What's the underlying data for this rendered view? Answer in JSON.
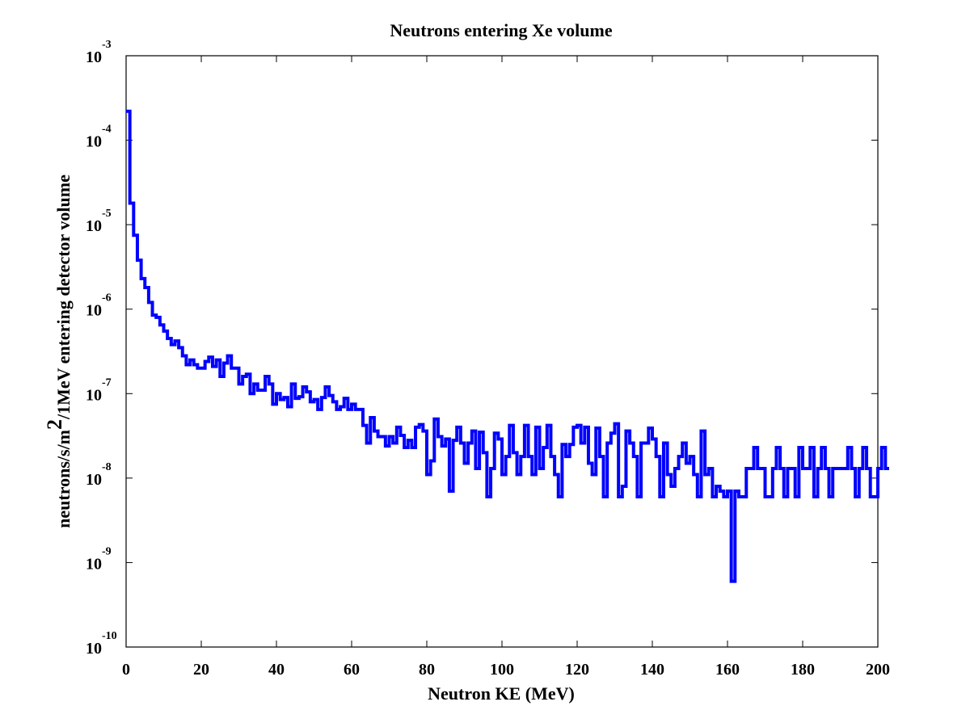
{
  "chart_data": {
    "type": "line",
    "title": "Neutrons entering Xe volume",
    "xlabel": "Neutron KE (MeV)",
    "ylabel": {
      "part1": "neutrons/s/m",
      "superscript": "2",
      "part2": "/1MeV entering detector volume"
    },
    "xlim": [
      0,
      200
    ],
    "ylim": [
      1e-10,
      0.001
    ],
    "y_scale": "log",
    "grid": false,
    "x_ticks": [
      {
        "value": 0,
        "label": "0"
      },
      {
        "value": 20,
        "label": "20"
      },
      {
        "value": 40,
        "label": "40"
      },
      {
        "value": 60,
        "label": "60"
      },
      {
        "value": 80,
        "label": "80"
      },
      {
        "value": 100,
        "label": "100"
      },
      {
        "value": 120,
        "label": "120"
      },
      {
        "value": 140,
        "label": "140"
      },
      {
        "value": 160,
        "label": "160"
      },
      {
        "value": 180,
        "label": "180"
      },
      {
        "value": 200,
        "label": "200"
      }
    ],
    "y_ticks": [
      {
        "value": 0.001,
        "base": "10",
        "exp": "-3"
      },
      {
        "value": 0.0001,
        "base": "10",
        "exp": "-4"
      },
      {
        "value": 1e-05,
        "base": "10",
        "exp": "-5"
      },
      {
        "value": 1e-06,
        "base": "10",
        "exp": "-6"
      },
      {
        "value": 1e-07,
        "base": "10",
        "exp": "-7"
      },
      {
        "value": 1e-08,
        "base": "10",
        "exp": "-8"
      },
      {
        "value": 1e-09,
        "base": "10",
        "exp": "-9"
      },
      {
        "value": 1e-10,
        "base": "10",
        "exp": "-10"
      }
    ],
    "series": [
      {
        "color": "#0000ff",
        "bin_width": 1,
        "x_start": 0,
        "values": [
          0.00022,
          1.8e-05,
          7.5e-06,
          3.8e-06,
          2.3e-06,
          1.8e-06,
          1.2e-06,
          8.5e-07,
          8e-07,
          6.5e-07,
          5.5e-07,
          4.5e-07,
          3.8e-07,
          4.2e-07,
          3.5e-07,
          2.8e-07,
          2.2e-07,
          2.5e-07,
          2.2e-07,
          2e-07,
          2e-07,
          2.4e-07,
          2.7e-07,
          2.1e-07,
          2.5e-07,
          1.6e-07,
          2.3e-07,
          2.8e-07,
          2e-07,
          2e-07,
          1.3e-07,
          1.6e-07,
          1.7e-07,
          1e-07,
          1.3e-07,
          1.1e-07,
          1.1e-07,
          1.6e-07,
          1.3e-07,
          7.5e-08,
          1e-07,
          8.5e-08,
          9e-08,
          7e-08,
          1.3e-07,
          8.8e-08,
          9.2e-08,
          1.2e-07,
          1.05e-07,
          8e-08,
          8.5e-08,
          6.5e-08,
          9e-08,
          1.2e-07,
          9.5e-08,
          8e-08,
          6.5e-08,
          7e-08,
          8.8e-08,
          6.5e-08,
          7.5e-08,
          6.5e-08,
          6.5e-08,
          4.2e-08,
          2.6e-08,
          5.2e-08,
          3.6e-08,
          3.1e-08,
          3.1e-08,
          2.4e-08,
          3.1e-08,
          2.6e-08,
          4e-08,
          3.2e-08,
          2.3e-08,
          2.8e-08,
          2.3e-08,
          4e-08,
          4.3e-08,
          3.6e-08,
          1.1e-08,
          1.6e-08,
          5e-08,
          3.1e-08,
          2.4e-08,
          2.9e-08,
          7e-09,
          2.8e-08,
          4e-08,
          2.6e-08,
          1.5e-08,
          2.6e-08,
          3.6e-08,
          1.3e-08,
          3.5e-08,
          2e-08,
          6e-09,
          1.3e-08,
          3.4e-08,
          2.9e-08,
          1.1e-08,
          1.8e-08,
          4.2e-08,
          2e-08,
          1.1e-08,
          1.8e-08,
          4.2e-08,
          1.8e-08,
          1.1e-08,
          4e-08,
          1.3e-08,
          2.3e-08,
          4.2e-08,
          1.8e-08,
          1.1e-08,
          6e-09,
          2.5e-08,
          1.8e-08,
          2.5e-08,
          4e-08,
          4.2e-08,
          2.6e-08,
          4e-08,
          1.5e-08,
          1.1e-08,
          3.9e-08,
          1.8e-08,
          6e-09,
          2.6e-08,
          3.4e-08,
          4.4e-08,
          6e-09,
          8e-09,
          3.6e-08,
          2.6e-08,
          1.8e-08,
          6e-09,
          2.6e-08,
          2.6e-08,
          3.9e-08,
          2.9e-08,
          1.8e-08,
          6e-09,
          2.6e-08,
          1.1e-08,
          8e-09,
          1.3e-08,
          1.8e-08,
          2.6e-08,
          1.5e-08,
          1.8e-08,
          1.1e-08,
          6e-09,
          3.6e-08,
          1.1e-08,
          1.3e-08,
          6e-09,
          8e-09,
          7e-09,
          6e-09,
          7e-09,
          6e-10,
          7e-09,
          6e-09,
          6e-09,
          1.3e-08,
          1.3e-08,
          2.3e-08,
          1.3e-08,
          1.3e-08,
          6e-09,
          6e-09,
          1.3e-08,
          2.3e-08,
          1.3e-08,
          6e-09,
          1.3e-08,
          1.3e-08,
          6e-09,
          2.3e-08,
          1.3e-08,
          1.3e-08,
          2.3e-08,
          6e-09,
          1.3e-08,
          2.3e-08,
          1.3e-08,
          6e-09,
          1.3e-08,
          1.3e-08,
          1.3e-08,
          1.3e-08,
          2.3e-08,
          1.3e-08,
          6e-09,
          1.3e-08,
          2.3e-08,
          1.3e-08,
          6e-09,
          6e-09,
          1.3e-08,
          2.3e-08,
          1.3e-08
        ]
      }
    ]
  }
}
